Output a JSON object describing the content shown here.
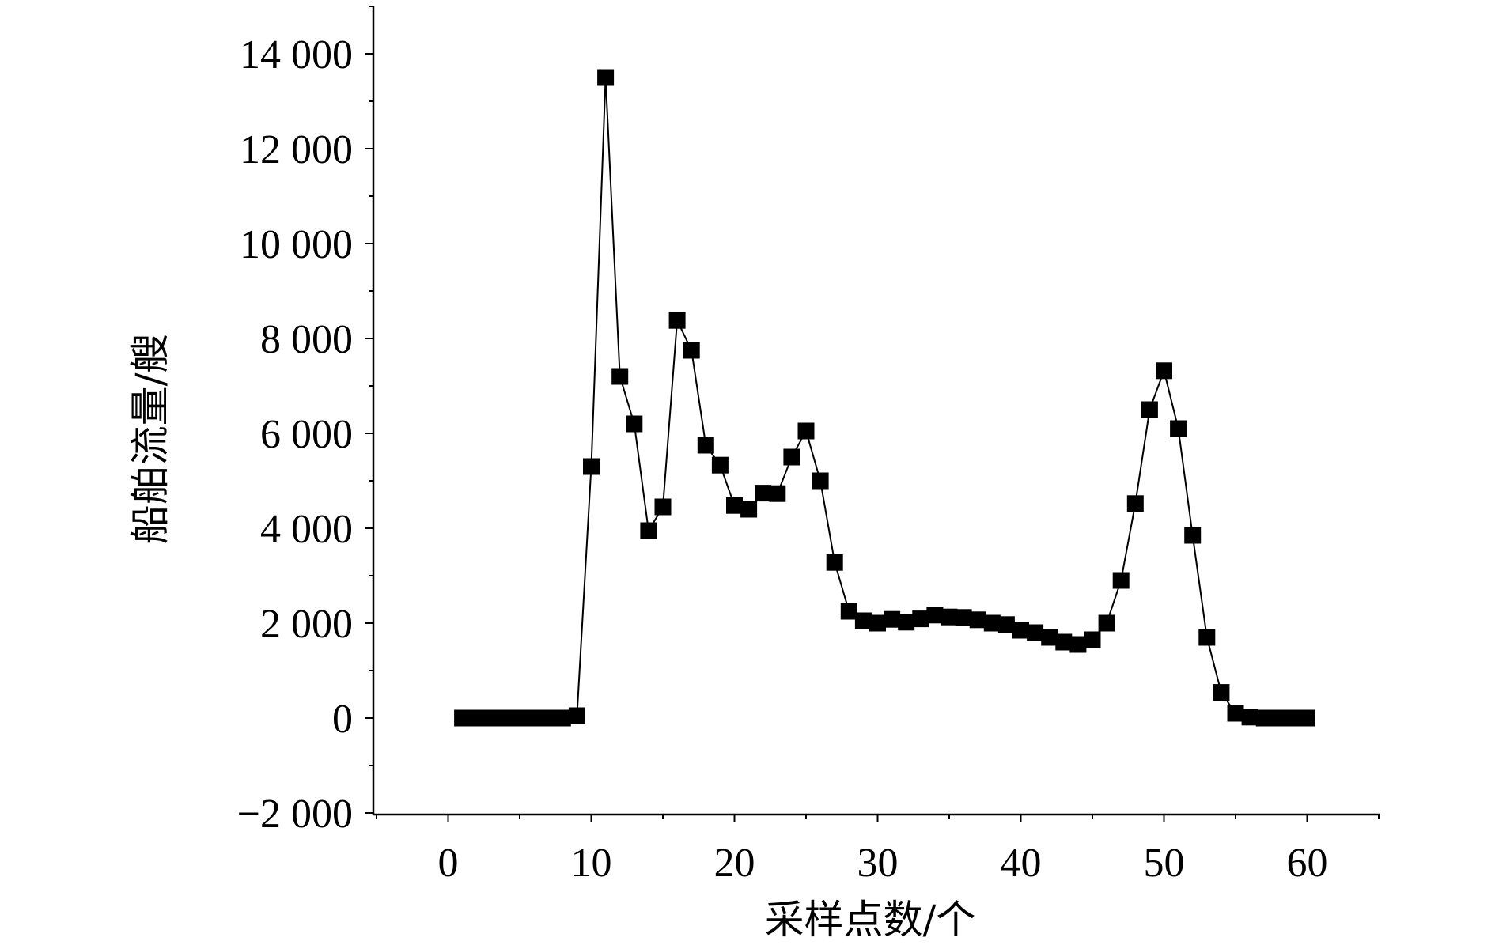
{
  "chart_data": {
    "type": "line",
    "title": "",
    "xlabel": "采样点数/个",
    "ylabel": "船舶流量/艘",
    "xlim": [
      -5,
      65
    ],
    "ylim": [
      -2000,
      15000
    ],
    "grid": false,
    "x_ticks": [
      0,
      10,
      20,
      30,
      40,
      50,
      60
    ],
    "x_tick_labels": [
      "0",
      "10",
      "20",
      "30",
      "40",
      "50",
      "60"
    ],
    "y_ticks": [
      -2000,
      0,
      2000,
      4000,
      6000,
      8000,
      10000,
      12000,
      14000
    ],
    "y_tick_labels": [
      "−2 000",
      "0",
      "2 000",
      "4 000",
      "6 000",
      "8 000",
      "10 000",
      "12 000",
      "14 000"
    ],
    "marker": "square",
    "series": [
      {
        "color": "#000000",
        "x": [
          1,
          2,
          3,
          4,
          5,
          6,
          7,
          8,
          9,
          10,
          11,
          12,
          13,
          14,
          15,
          16,
          17,
          18,
          19,
          20,
          21,
          22,
          23,
          24,
          25,
          26,
          27,
          28,
          29,
          30,
          31,
          32,
          33,
          34,
          35,
          36,
          37,
          38,
          39,
          40,
          41,
          42,
          43,
          44,
          45,
          46,
          47,
          48,
          49,
          50,
          51,
          52,
          53,
          54,
          55,
          56,
          57,
          58,
          59,
          60
        ],
        "values": [
          0,
          0,
          0,
          0,
          0,
          0,
          0,
          0,
          50,
          5300,
          13500,
          7200,
          6200,
          3950,
          4450,
          8380,
          7750,
          5750,
          5330,
          4480,
          4400,
          4740,
          4730,
          5500,
          6050,
          5000,
          3280,
          2250,
          2050,
          2000,
          2080,
          2020,
          2090,
          2170,
          2130,
          2120,
          2070,
          2000,
          1970,
          1850,
          1800,
          1700,
          1600,
          1550,
          1650,
          2000,
          2900,
          4520,
          6500,
          7320,
          6100,
          3850,
          1700,
          540,
          100,
          20,
          0,
          0,
          0,
          0
        ]
      }
    ]
  }
}
